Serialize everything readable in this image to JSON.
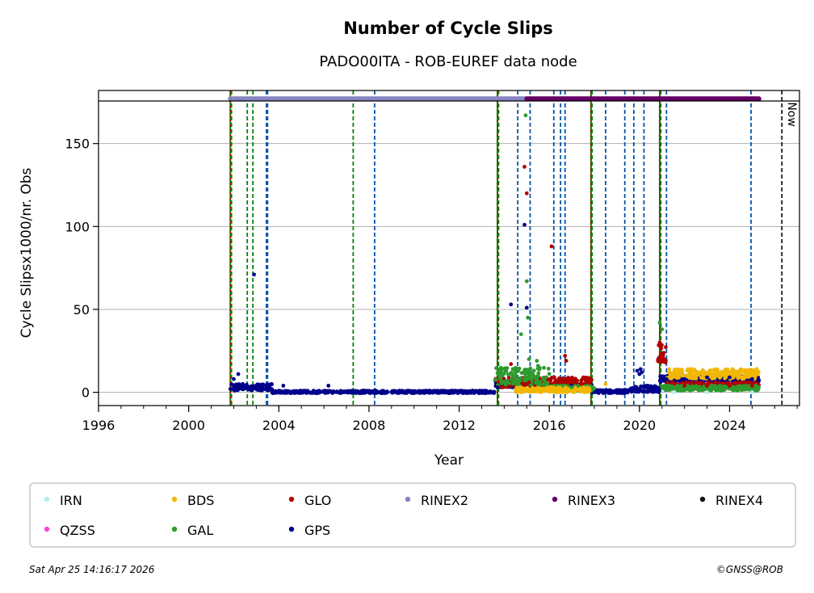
{
  "chart_data": {
    "type": "scatter",
    "title": "Number of Cycle Slips",
    "subtitle": "PADO00ITA - ROB-EUREF data node",
    "xlabel": "Year",
    "ylabel": "Cycle Slipsx1000/nr. Obs",
    "xlim": [
      1996.0,
      2027.1
    ],
    "ylim": [
      -8,
      182
    ],
    "xticks": [
      1996,
      2000,
      2004,
      2008,
      2012,
      2016,
      2020,
      2024
    ],
    "yticks": [
      0,
      50,
      100,
      150
    ],
    "grid": "horizontal",
    "now_label": "Now",
    "now_year": 2026.32,
    "colors": {
      "IRN": "#b3eeee",
      "QZSS": "#ff44dd",
      "BDS": "#f2b705",
      "GAL": "#2e9a2e",
      "GLO": "#b00000",
      "GPS": "#00008b",
      "RINEX2": "#8585c2",
      "RINEX3": "#660066",
      "RINEX4": "#1a0a1a",
      "green_events": "#008000",
      "blue_events": "#0055aa",
      "red_events": "#cc0000"
    },
    "legend": [
      {
        "name": "IRN",
        "key": "IRN"
      },
      {
        "name": "BDS",
        "key": "BDS"
      },
      {
        "name": "GLO",
        "key": "GLO"
      },
      {
        "name": "RINEX2",
        "key": "RINEX2"
      },
      {
        "name": "RINEX3",
        "key": "RINEX3"
      },
      {
        "name": "RINEX4",
        "key": "RINEX4"
      },
      {
        "name": "QZSS",
        "key": "QZSS"
      },
      {
        "name": "GAL",
        "key": "GAL"
      },
      {
        "name": "GPS",
        "key": "GPS"
      }
    ],
    "rinex_bars": [
      {
        "key": "RINEX2",
        "x": [
          2001.85,
          2015.0
        ],
        "y": 177
      },
      {
        "key": "RINEX3",
        "x": [
          2015.0,
          2025.3
        ],
        "y": 177
      }
    ],
    "event_lines": {
      "red": [
        2001.85,
        2013.7,
        2017.85,
        2020.9
      ],
      "green": [
        2001.9,
        2002.6,
        2002.85,
        2007.3,
        2013.75,
        2017.9,
        2020.95
      ],
      "blue": [
        2003.45,
        2003.5,
        2008.25,
        2014.6,
        2015.15,
        2016.2,
        2016.5,
        2016.7,
        2018.5,
        2019.35,
        2019.75,
        2020.2,
        2021.2,
        2024.95
      ]
    },
    "series": [
      {
        "name": "GPS",
        "key": "GPS",
        "x": [
          2001.85,
          2002.0,
          2002.2,
          2002.4,
          2002.9,
          2003.1,
          2003.5,
          2004.2,
          2006.2,
          2007.0,
          2013.0,
          2013.7,
          2014.3,
          2014.9,
          2015.0,
          2017.0,
          2019.0,
          2019.9,
          2020.0,
          2020.05,
          2020.1,
          2021.2,
          2022.0,
          2023.0,
          2024.0,
          2025.0,
          2025.3
        ],
        "y": [
          2,
          8,
          11,
          5,
          71,
          3,
          2,
          4,
          4,
          0,
          0,
          3,
          53,
          101,
          51,
          4,
          0,
          13,
          11,
          14,
          12,
          8,
          8,
          9,
          9,
          8,
          7
        ]
      },
      {
        "name": "GLO",
        "key": "GLO",
        "x": [
          2014.3,
          2014.9,
          2015.0,
          2015.1,
          2016.1,
          2016.7,
          2016.75,
          2017.0,
          2020.9,
          2021.0,
          2021.1,
          2022.0,
          2023.0,
          2024.0,
          2025.0
        ],
        "y": [
          17,
          136,
          120,
          6,
          88,
          22,
          19,
          6,
          30,
          22,
          20,
          4,
          4,
          4,
          4
        ]
      },
      {
        "name": "GAL",
        "key": "GAL",
        "x": [
          2014.75,
          2014.95,
          2015.0,
          2015.05,
          2015.1,
          2015.45,
          2015.5,
          2017.0,
          2020.9,
          2021.0
        ],
        "y": [
          35,
          167,
          67,
          45,
          20,
          19,
          16,
          3,
          42,
          38
        ]
      },
      {
        "name": "BDS",
        "key": "BDS",
        "x": [
          2014.8,
          2015.5,
          2016.5,
          2018.5,
          2021.5,
          2022.5,
          2023.5,
          2024.5,
          2025.2
        ],
        "y": [
          2,
          1,
          2,
          5,
          10,
          11,
          12,
          13,
          14
        ]
      },
      {
        "name": "IRN",
        "key": "IRN",
        "x": [
          2021.5,
          2023.0,
          2025.0
        ],
        "y": [
          0,
          0,
          0
        ]
      }
    ],
    "bands": [
      {
        "key": "GPS",
        "segments": [
          {
            "x": [
              2001.9,
              2003.7
            ],
            "y": [
              1,
              5
            ]
          },
          {
            "x": [
              2003.7,
              2013.6
            ],
            "y": [
              -0.5,
              1
            ]
          },
          {
            "x": [
              2013.6,
              2014.9
            ],
            "y": [
              3,
              7
            ]
          },
          {
            "x": [
              2014.9,
              2017.9
            ],
            "y": [
              2,
              5
            ]
          },
          {
            "x": [
              2017.9,
              2019.6
            ],
            "y": [
              -0.5,
              1.5
            ]
          },
          {
            "x": [
              2019.6,
              2020.9
            ],
            "y": [
              0,
              4
            ]
          },
          {
            "x": [
              2020.9,
              2025.3
            ],
            "y": [
              6,
              10
            ]
          }
        ]
      },
      {
        "key": "GLO",
        "segments": [
          {
            "x": [
              2013.6,
              2017.9
            ],
            "y": [
              3,
              9
            ]
          },
          {
            "x": [
              2020.8,
              2021.2
            ],
            "y": [
              18,
              30
            ]
          },
          {
            "x": [
              2021.2,
              2025.3
            ],
            "y": [
              2,
              6
            ]
          }
        ]
      },
      {
        "key": "GAL",
        "segments": [
          {
            "x": [
              2013.6,
              2016.0
            ],
            "y": [
              4,
              15
            ]
          },
          {
            "x": [
              2016.0,
              2018.0
            ],
            "y": [
              1,
              4
            ]
          },
          {
            "x": [
              2021.0,
              2025.3
            ],
            "y": [
              1,
              4
            ]
          }
        ]
      },
      {
        "key": "BDS",
        "segments": [
          {
            "x": [
              2014.5,
              2017.8
            ],
            "y": [
              0,
              3
            ]
          },
          {
            "x": [
              2021.2,
              2025.3
            ],
            "y": [
              8,
              14
            ]
          }
        ]
      }
    ]
  },
  "footer": {
    "timestamp": "Sat Apr 25 14:16:17 2026",
    "copyright": "©GNSS@ROB"
  }
}
